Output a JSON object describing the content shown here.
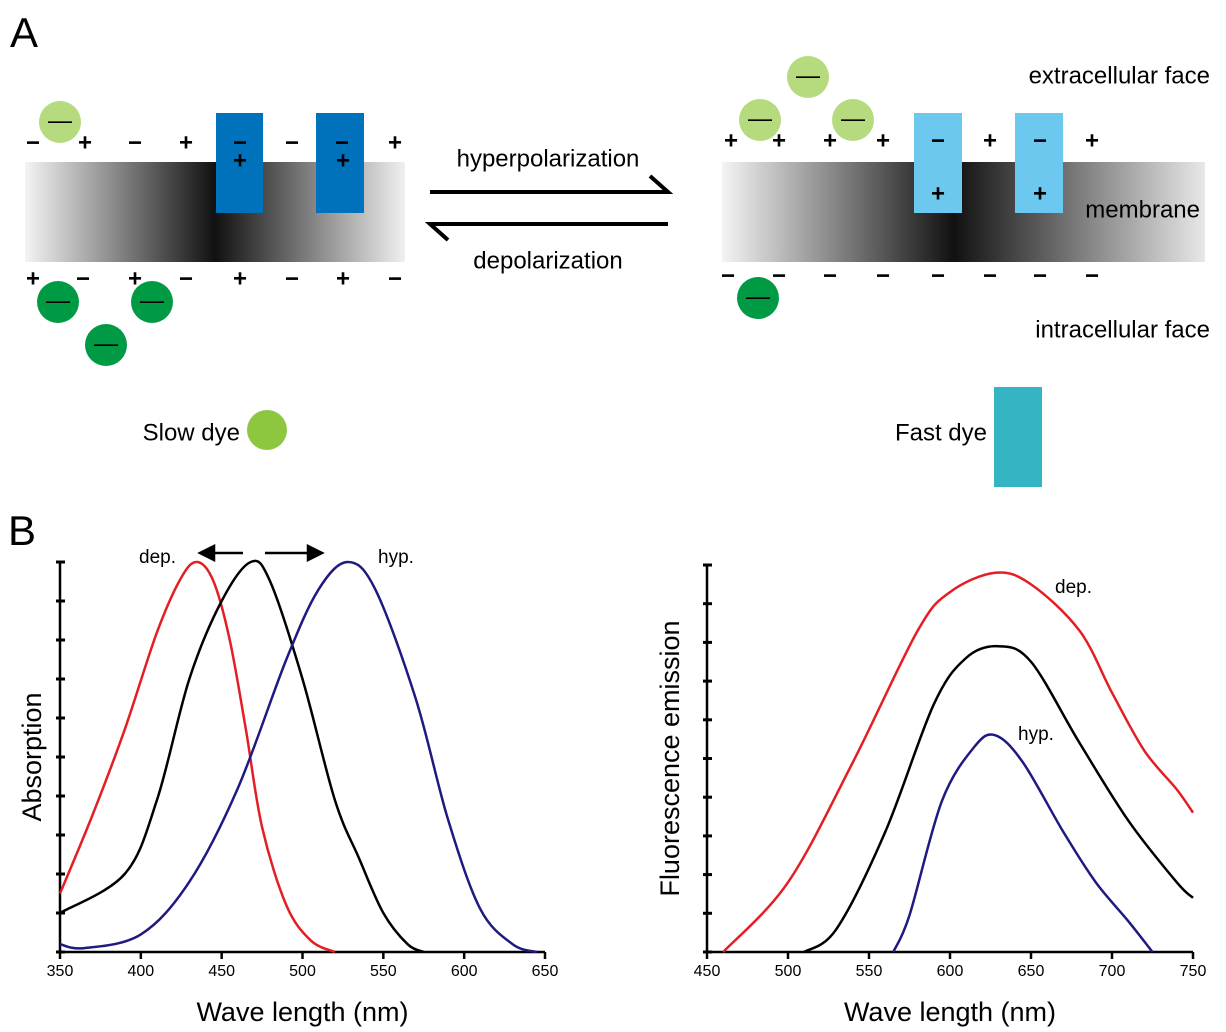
{
  "panel_a": {
    "label": "A",
    "arrow_top": "hyperpolarization",
    "arrow_bottom": "depolarization",
    "extracellular": "extracellular face",
    "membrane": "membrane",
    "intracellular": "intracellular face",
    "slow_dye": "Slow dye",
    "fast_dye": "Fast dye",
    "dye_sign": "—",
    "left_top_charges": [
      "−",
      "+",
      "−",
      "+",
      "−",
      "−",
      "−",
      "+"
    ],
    "left_inner_charges": [
      "+",
      "+"
    ],
    "left_bottom_charges": [
      "+",
      "−",
      "+",
      "−",
      "+",
      "−",
      "+",
      "−"
    ],
    "right_top_charges": [
      "+",
      "+",
      "+",
      "+",
      "−",
      "+",
      "−",
      "+"
    ],
    "right_inner_charges": [
      "+",
      "+"
    ],
    "right_bottom_charges": [
      "−",
      "−",
      "−",
      "−",
      "−",
      "−",
      "−",
      "−"
    ]
  },
  "panel_b": {
    "label": "B"
  },
  "chart_data": [
    {
      "type": "line",
      "x_label": "Wave length (nm)",
      "y_label": "Absorption",
      "xlim": [
        350,
        650
      ],
      "xticks": [
        350,
        400,
        450,
        500,
        550,
        600,
        650
      ],
      "ylim": [
        0,
        1
      ],
      "yticks": [
        0,
        0.1,
        0.2,
        0.3,
        0.4,
        0.5,
        0.6,
        0.7,
        0.8,
        0.9,
        1
      ],
      "series": [
        {
          "name": "dep.",
          "color": "#e31e24",
          "x": [
            350,
            370,
            390,
            410,
            425,
            435,
            445,
            455,
            465,
            475,
            490,
            505,
            520
          ],
          "values": [
            0.15,
            0.35,
            0.57,
            0.82,
            0.96,
            1.0,
            0.95,
            0.8,
            0.57,
            0.32,
            0.12,
            0.03,
            0.0
          ]
        },
        {
          "color": "#000000",
          "x": [
            350,
            390,
            410,
            430,
            450,
            468,
            480,
            500,
            520,
            535,
            550,
            565,
            575
          ],
          "values": [
            0.1,
            0.2,
            0.39,
            0.7,
            0.9,
            1.0,
            0.95,
            0.7,
            0.39,
            0.24,
            0.1,
            0.02,
            0.0
          ]
        },
        {
          "name": "hyp.",
          "color": "#1f1a80",
          "x": [
            350,
            365,
            400,
            430,
            460,
            490,
            510,
            528,
            545,
            570,
            590,
            610,
            630,
            645
          ],
          "values": [
            0.02,
            0.01,
            0.045,
            0.18,
            0.42,
            0.75,
            0.93,
            1.0,
            0.93,
            0.65,
            0.34,
            0.11,
            0.02,
            0.0
          ]
        }
      ]
    },
    {
      "type": "line",
      "x_label": "Wave length (nm)",
      "y_label": "Fluorescence emission",
      "xlim": [
        450,
        750
      ],
      "xticks": [
        450,
        500,
        550,
        600,
        650,
        700,
        750
      ],
      "ylim": [
        0,
        1
      ],
      "yticks": [
        0,
        0.1,
        0.2,
        0.3,
        0.4,
        0.5,
        0.6,
        0.7,
        0.8,
        0.9,
        1
      ],
      "series": [
        {
          "name": "dep.",
          "color": "#e31e24",
          "x": [
            460,
            500,
            540,
            580,
            600,
            628,
            650,
            680,
            700,
            720,
            740,
            750
          ],
          "values": [
            0.0,
            0.18,
            0.49,
            0.83,
            0.93,
            0.98,
            0.95,
            0.83,
            0.67,
            0.52,
            0.42,
            0.36
          ]
        },
        {
          "color": "#000000",
          "x": [
            510,
            530,
            560,
            590,
            610,
            630,
            650,
            680,
            710,
            740,
            750
          ],
          "values": [
            0.0,
            0.06,
            0.31,
            0.64,
            0.76,
            0.79,
            0.75,
            0.54,
            0.34,
            0.18,
            0.14
          ]
        },
        {
          "name": "hyp.",
          "color": "#1f1a80",
          "x": [
            565,
            575,
            595,
            615,
            628,
            645,
            670,
            690,
            710,
            725
          ],
          "values": [
            0.0,
            0.095,
            0.39,
            0.53,
            0.56,
            0.49,
            0.31,
            0.18,
            0.08,
            0.0
          ]
        }
      ]
    }
  ]
}
